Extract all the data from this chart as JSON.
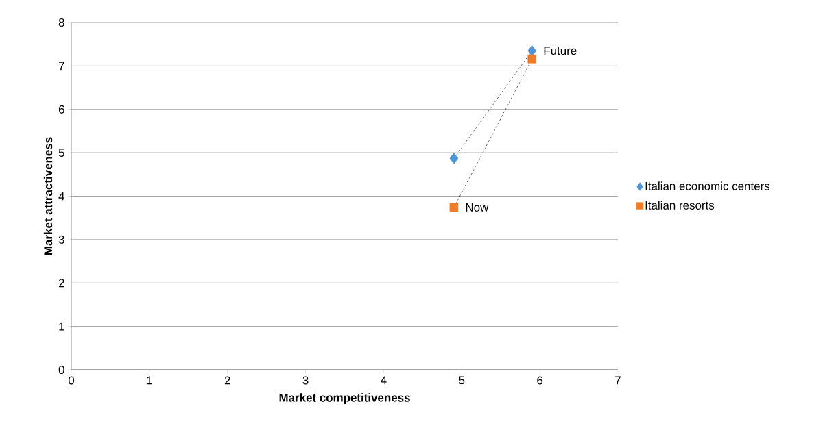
{
  "chart_data": {
    "type": "scatter",
    "xlabel": "Market competitiveness",
    "ylabel": "Market attractiveness",
    "x": [
      4.9,
      5.9
    ],
    "series": [
      {
        "name": "Italian economic centers",
        "color": "#4f94d4",
        "marker": "diamond",
        "values": [
          4.87,
          7.35
        ]
      },
      {
        "name": "Italian resorts",
        "color": "#f07c2a",
        "marker": "square",
        "values": [
          3.74,
          7.16
        ]
      }
    ],
    "line_style": "dashed",
    "annotations": [
      {
        "text": "Now",
        "x": 4.9,
        "y": 3.74
      },
      {
        "text": "Future",
        "x": 5.9,
        "y": 7.35
      }
    ],
    "xlim": [
      0,
      7
    ],
    "xticks": [
      0,
      1,
      2,
      3,
      4,
      5,
      6,
      7
    ],
    "ylim": [
      0,
      8
    ],
    "yticks": [
      0,
      1,
      2,
      3,
      4,
      5,
      6,
      7,
      8
    ],
    "grid": "y",
    "legend": "right"
  }
}
